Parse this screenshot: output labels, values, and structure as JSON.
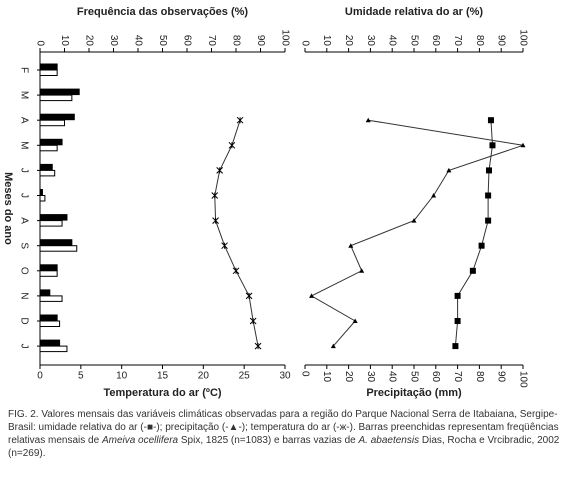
{
  "chart_data": [
    {
      "type": "bar",
      "orientation": "horizontal",
      "xlabel": "Frequência das observações (%)",
      "xlim": [
        0,
        100
      ],
      "xticks": [
        0,
        10,
        20,
        30,
        40,
        50,
        60,
        70,
        80,
        90,
        100
      ],
      "x2label": "Temperatura do ar (ºC)",
      "x2lim": [
        0,
        30
      ],
      "x2ticks": [
        0,
        5,
        10,
        15,
        20,
        25,
        30
      ],
      "ylabel": "Meses do ano",
      "categories": [
        "F",
        "M",
        "A",
        "M",
        "J",
        "J",
        "A",
        "S",
        "O",
        "N",
        "D",
        "J"
      ],
      "series": [
        {
          "type": "bar",
          "color": "#000000",
          "values": [
            7,
            16,
            14,
            9,
            5,
            1,
            11,
            13,
            7,
            4,
            7,
            8
          ]
        },
        {
          "type": "bar",
          "color": "#ffffff",
          "values": [
            7,
            13,
            10,
            7,
            6,
            2,
            9,
            15,
            7,
            9,
            8,
            11
          ]
        },
        {
          "type": "line",
          "axis": "x2",
          "marker": "star",
          "color": "#333333",
          "values": [
            null,
            null,
            24.5,
            23.5,
            22,
            21.4,
            21.5,
            22.6,
            24,
            25.6,
            26.1,
            26.7
          ]
        }
      ]
    },
    {
      "type": "line",
      "orientation": "horizontal",
      "xlabel": "Umidade relativa do ar (%)",
      "xlim": [
        0,
        100
      ],
      "xticks": [
        0,
        10,
        20,
        30,
        40,
        50,
        60,
        70,
        80,
        90,
        100
      ],
      "x2label": "Precipitação (mm)",
      "x2lim": [
        0,
        100
      ],
      "x2ticks": [
        0,
        10,
        20,
        30,
        40,
        50,
        60,
        70,
        80,
        90,
        100
      ],
      "categories": [
        "F",
        "M",
        "A",
        "M",
        "J",
        "J",
        "A",
        "S",
        "O",
        "N",
        "D",
        "J"
      ],
      "series": [
        {
          "type": "line",
          "marker": "square",
          "color": "#333333",
          "values": [
            null,
            null,
            85.3,
            86,
            84.4,
            84,
            84,
            81,
            77,
            70,
            70,
            69
          ]
        },
        {
          "type": "line",
          "axis": "x2",
          "marker": "triangle",
          "color": "#333333",
          "values": [
            null,
            null,
            29,
            100,
            66,
            59,
            50,
            21,
            26,
            3,
            23,
            13
          ]
        }
      ]
    }
  ],
  "caption": [
    "FIG. 2. Valores mensais das variáveis climáticas observadas para a região do Parque Nacional Serra de Itabaiana, Sergipe-Brasil: umidade relativa do ar (-■-); precipitação (-▲-); temperatura do ar (-ж-). Barras preenchidas representam freqüências relativas mensais de ",
    "Ameiva ocellifera",
    " Spix, 1825 (n=1083) e barras vazias de ",
    "A. abaetensis",
    " Dias, Rocha e Vrcibradic, 2002 (n=269)."
  ]
}
